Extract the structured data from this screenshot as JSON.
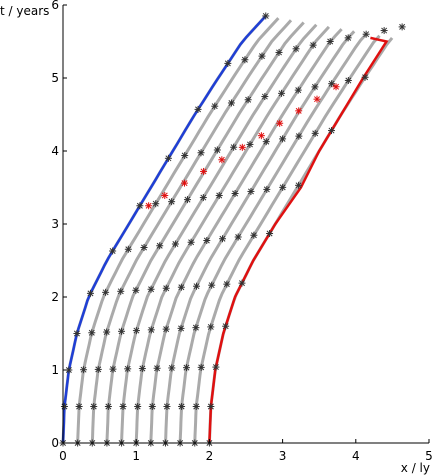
{
  "chart_data": {
    "type": "line",
    "xlabel": "x / ly",
    "ylabel": "t / years",
    "xlim": [
      0,
      5
    ],
    "ylim": [
      0,
      6
    ],
    "xticks": [
      "0",
      "1",
      "2",
      "3",
      "4",
      "5"
    ],
    "yticks": [
      "0",
      "1",
      "2",
      "3",
      "4",
      "5",
      "6"
    ],
    "grid": false,
    "legend": "none",
    "colors": {
      "worldlines": "#aaaaaa",
      "left_worldline": "#1f3fd6",
      "right_worldline": "#e01010",
      "event_markers": "#333333",
      "highlight_markers": "#e01010"
    },
    "worldline_offsets": [
      0,
      0.2,
      0.4,
      0.6,
      0.8,
      1.0,
      1.2,
      1.4,
      1.6,
      1.8,
      2.0
    ],
    "base_worldline": {
      "t": [
        0,
        0.5,
        1.0,
        1.5,
        2.0,
        2.5,
        3.0,
        3.5,
        4.0,
        4.5,
        5.0,
        5.5,
        5.85
      ],
      "x": [
        0.0,
        0.02,
        0.08,
        0.19,
        0.35,
        0.6,
        0.9,
        1.2,
        1.5,
        1.8,
        2.12,
        2.45,
        2.77
      ]
    },
    "right_worldline": {
      "t": [
        0,
        0.5,
        1.0,
        1.5,
        2.0,
        2.5,
        3.0,
        3.5,
        4.0,
        4.5,
        5.0,
        5.5,
        5.55
      ],
      "x": [
        2.0,
        2.02,
        2.08,
        2.19,
        2.35,
        2.6,
        2.9,
        3.25,
        3.5,
        3.8,
        4.1,
        4.42,
        4.2
      ]
    },
    "event_marker_times": [
      0,
      0.5,
      1.0,
      1.5,
      2.05,
      2.63,
      3.25,
      3.9,
      4.57,
      5.2,
      5.85
    ],
    "event_marker_tilt": [
      0,
      0,
      0.02,
      0.05,
      0.07,
      0.12,
      0.14,
      0.19,
      0.22,
      0.25,
      0.29
    ],
    "highlight_markers": {
      "x": [
        1.17,
        1.39,
        1.66,
        1.92,
        2.17,
        2.45,
        2.71,
        2.96,
        3.22,
        3.47,
        3.73
      ],
      "t": [
        3.25,
        3.39,
        3.56,
        3.72,
        3.88,
        4.05,
        4.21,
        4.38,
        4.55,
        4.71,
        4.88
      ]
    }
  }
}
